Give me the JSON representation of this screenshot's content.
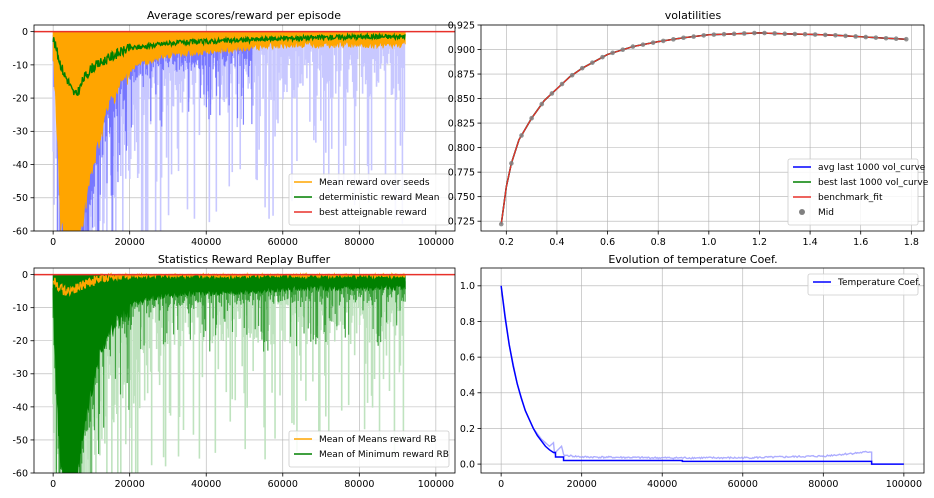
{
  "chart_data": [
    {
      "id": "p1",
      "type": "line",
      "title": "Average scores/reward per episode",
      "xlim": [
        -5000,
        105000
      ],
      "ylim": [
        -60,
        2
      ],
      "xticks": [
        0,
        20000,
        40000,
        60000,
        80000,
        100000
      ],
      "yticks": [
        -60,
        -50,
        -40,
        -30,
        -20,
        -10,
        0
      ],
      "grid": true,
      "legend_position": "lower-right",
      "series": [
        {
          "name": "Mean reward over seeds",
          "color": "#ffa500",
          "x_end": 92000,
          "points": [
            [
              0,
              -3
            ],
            [
              1000,
              -25
            ],
            [
              2000,
              -55
            ],
            [
              3000,
              -60
            ],
            [
              5000,
              -60
            ],
            [
              7000,
              -58
            ],
            [
              9000,
              -45
            ],
            [
              11000,
              -35
            ],
            [
              13000,
              -25
            ],
            [
              15000,
              -18
            ],
            [
              18000,
              -12
            ],
            [
              22000,
              -9
            ],
            [
              30000,
              -6
            ],
            [
              40000,
              -5
            ],
            [
              50000,
              -4
            ],
            [
              60000,
              -3
            ],
            [
              70000,
              -3
            ],
            [
              80000,
              -3
            ],
            [
              92000,
              -3
            ]
          ]
        },
        {
          "name": "deterministic reward Mean",
          "color": "#008000",
          "x_end": 92000,
          "points": [
            [
              0,
              -2
            ],
            [
              1000,
              -6
            ],
            [
              2000,
              -10
            ],
            [
              3000,
              -13
            ],
            [
              4000,
              -15
            ],
            [
              5000,
              -18
            ],
            [
              6000,
              -19
            ],
            [
              7000,
              -17
            ],
            [
              8000,
              -14
            ],
            [
              10000,
              -11
            ],
            [
              13000,
              -9
            ],
            [
              16000,
              -7
            ],
            [
              20000,
              -5
            ],
            [
              30000,
              -3.5
            ],
            [
              40000,
              -3
            ],
            [
              60000,
              -2
            ],
            [
              80000,
              -1.5
            ],
            [
              92000,
              -1.5
            ]
          ]
        },
        {
          "name": "best atteignable reward",
          "color": "#e8312a",
          "points": [
            [
              -5000,
              0
            ],
            [
              105000,
              0
            ]
          ]
        }
      ]
    },
    {
      "id": "p2",
      "type": "line",
      "title": "volatilities",
      "xlim": [
        0.1,
        1.85
      ],
      "ylim": [
        0.715,
        0.925
      ],
      "xticks": [
        0.2,
        0.4,
        0.6,
        0.8,
        1.0,
        1.2,
        1.4,
        1.6,
        1.8
      ],
      "yticks": [
        0.725,
        0.75,
        0.775,
        0.8,
        0.825,
        0.85,
        0.875,
        0.9,
        0.925
      ],
      "grid": true,
      "legend_position": "lower-right",
      "curve": {
        "x_start": 0.18,
        "x_end": 1.78,
        "points": [
          [
            0.18,
            0.722
          ],
          [
            0.2,
            0.76
          ],
          [
            0.22,
            0.784
          ],
          [
            0.25,
            0.808
          ],
          [
            0.3,
            0.83
          ],
          [
            0.35,
            0.848
          ],
          [
            0.4,
            0.86
          ],
          [
            0.45,
            0.872
          ],
          [
            0.5,
            0.881
          ],
          [
            0.6,
            0.895
          ],
          [
            0.7,
            0.903
          ],
          [
            0.8,
            0.908
          ],
          [
            0.9,
            0.912
          ],
          [
            1.0,
            0.915
          ],
          [
            1.1,
            0.916
          ],
          [
            1.2,
            0.917
          ],
          [
            1.3,
            0.916
          ],
          [
            1.4,
            0.9155
          ],
          [
            1.5,
            0.9145
          ],
          [
            1.6,
            0.913
          ],
          [
            1.7,
            0.9115
          ],
          [
            1.78,
            0.9105
          ]
        ]
      },
      "series": [
        {
          "name": "avg last 1000 vol_curve",
          "color": "#0000ff"
        },
        {
          "name": "best last 1000 vol_curve",
          "color": "#008000"
        },
        {
          "name": "benchmark_fit",
          "color": "#e8312a"
        },
        {
          "name": "Mid",
          "color": "#808080",
          "marker": "dot"
        }
      ]
    },
    {
      "id": "p3",
      "type": "line",
      "title": "Statistics Reward Replay Buffer",
      "xlim": [
        -5000,
        105000
      ],
      "ylim": [
        -60,
        2
      ],
      "xticks": [
        0,
        20000,
        40000,
        60000,
        80000,
        100000
      ],
      "yticks": [
        -60,
        -50,
        -40,
        -30,
        -20,
        -10,
        0
      ],
      "grid": true,
      "legend_position": "lower-right",
      "series": [
        {
          "name": "Mean of Means reward RB",
          "color": "#ffa500",
          "x_end": 92000,
          "points": [
            [
              0,
              -2
            ],
            [
              3000,
              -5
            ],
            [
              6000,
              -4
            ],
            [
              10000,
              -2
            ],
            [
              16000,
              0
            ],
            [
              92000,
              0
            ]
          ]
        },
        {
          "name": "Mean of Minimum reward RB",
          "color": "#008000",
          "x_end": 92000,
          "points": [
            [
              0,
              -5
            ],
            [
              1000,
              -35
            ],
            [
              2000,
              -55
            ],
            [
              4000,
              -60
            ],
            [
              6000,
              -58
            ],
            [
              8000,
              -45
            ],
            [
              10000,
              -32
            ],
            [
              12000,
              -22
            ],
            [
              14000,
              -15
            ],
            [
              17000,
              -10
            ],
            [
              22000,
              -7
            ],
            [
              30000,
              -5
            ],
            [
              50000,
              -4
            ],
            [
              70000,
              -3
            ],
            [
              92000,
              -3
            ]
          ]
        }
      ],
      "reference_line": {
        "y": 0,
        "color": "#e8312a"
      }
    },
    {
      "id": "p4",
      "type": "line",
      "title": "Evolution of temperature Coef.",
      "xlim": [
        -5000,
        105000
      ],
      "ylim": [
        -0.05,
        1.1
      ],
      "xticks": [
        0,
        20000,
        40000,
        60000,
        80000,
        100000
      ],
      "yticks": [
        0.0,
        0.2,
        0.4,
        0.6,
        0.8,
        1.0
      ],
      "grid": true,
      "legend_position": "upper-right",
      "series": [
        {
          "name": "Temperature Coef.",
          "color": "#0000ff",
          "points": [
            [
              0,
              1.0
            ],
            [
              1000,
              0.82
            ],
            [
              2000,
              0.67
            ],
            [
              3000,
              0.55
            ],
            [
              4000,
              0.45
            ],
            [
              5000,
              0.37
            ],
            [
              6000,
              0.3
            ],
            [
              7000,
              0.25
            ],
            [
              8000,
              0.2
            ],
            [
              9000,
              0.16
            ],
            [
              10000,
              0.13
            ],
            [
              11000,
              0.1
            ],
            [
              12000,
              0.08
            ],
            [
              13000,
              0.065
            ],
            [
              13500,
              0.065
            ],
            [
              13500,
              0.04
            ],
            [
              15500,
              0.04
            ],
            [
              15500,
              0.02
            ],
            [
              45000,
              0.02
            ],
            [
              45000,
              0.015
            ],
            [
              92000,
              0.015
            ],
            [
              92000,
              0.0
            ],
            [
              100000,
              0.0
            ]
          ]
        },
        {
          "name": "",
          "color": "#9999ff",
          "band": true,
          "points": [
            [
              0,
              1.0
            ],
            [
              2000,
              0.67
            ],
            [
              4000,
              0.45
            ],
            [
              6000,
              0.3
            ],
            [
              8000,
              0.2
            ],
            [
              10000,
              0.14
            ],
            [
              12000,
              0.1
            ],
            [
              13000,
              0.12
            ],
            [
              13200,
              0.06
            ],
            [
              15000,
              0.1
            ],
            [
              15500,
              0.05
            ],
            [
              20000,
              0.04
            ],
            [
              40000,
              0.035
            ],
            [
              60000,
              0.035
            ],
            [
              80000,
              0.045
            ],
            [
              92000,
              0.07
            ],
            [
              92000,
              0.0
            ]
          ]
        }
      ]
    }
  ]
}
